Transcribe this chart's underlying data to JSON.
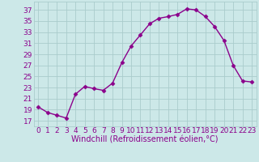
{
  "x": [
    0,
    1,
    2,
    3,
    4,
    5,
    6,
    7,
    8,
    9,
    10,
    11,
    12,
    13,
    14,
    15,
    16,
    17,
    18,
    19,
    20,
    21,
    22,
    23
  ],
  "y": [
    19.5,
    18.5,
    18.0,
    17.5,
    21.8,
    23.2,
    22.8,
    22.5,
    23.8,
    27.5,
    30.5,
    32.5,
    34.5,
    35.5,
    35.8,
    36.2,
    37.2,
    37.0,
    35.8,
    34.0,
    31.5,
    27.0,
    24.2,
    24.0
  ],
  "line_color": "#8B008B",
  "marker": "D",
  "marker_size": 2.5,
  "bg_color": "#cce8e8",
  "grid_color": "#aacccc",
  "xlabel": "Windchill (Refroidissement éolien,°C)",
  "ylabel_ticks": [
    17,
    19,
    21,
    23,
    25,
    27,
    29,
    31,
    33,
    35,
    37
  ],
  "ylim": [
    16.0,
    38.5
  ],
  "xlim": [
    -0.5,
    23.5
  ],
  "tick_color": "#8B008B",
  "xlabel_color": "#8B008B",
  "xlabel_fontsize": 7.0,
  "tick_fontsize": 6.5,
  "linewidth": 1.0
}
